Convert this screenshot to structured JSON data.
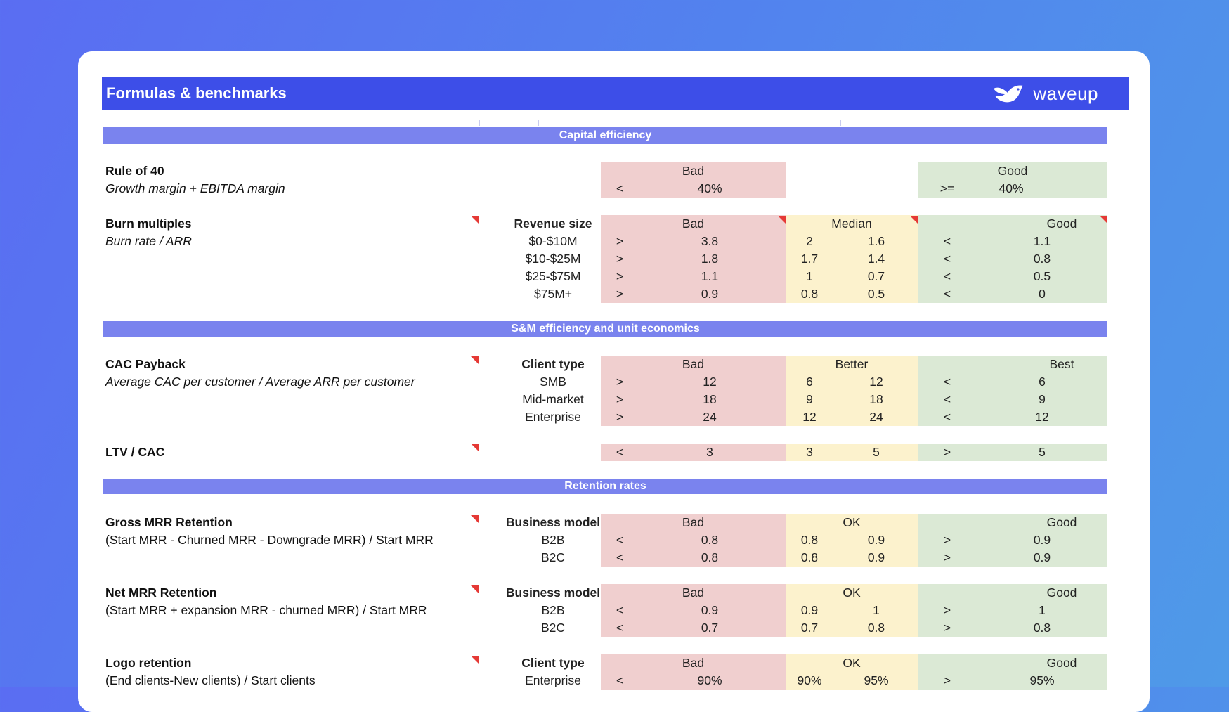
{
  "title": "Formulas & benchmarks",
  "brand": "waveup",
  "sections": {
    "capital": "Capital efficiency",
    "sm": "S&M efficiency and unit economics",
    "retention": "Retention rates"
  },
  "colors": {
    "accent": "#3d4ee8",
    "section": "#7a83ee",
    "bad": "#f0cfcf",
    "median": "#fcf2cd",
    "good": "#dbe9d5"
  },
  "rule40": {
    "name": "Rule of 40",
    "formula": "Growth margin + EBITDA margin",
    "bad_label": "Bad",
    "good_label": "Good",
    "bad_op": "<",
    "bad_val": "40%",
    "good_op": ">=",
    "good_val": "40%"
  },
  "burn": {
    "name": "Burn multiples",
    "formula": "Burn rate / ARR",
    "col": "Revenue size",
    "bad_label": "Bad",
    "mid_label": "Median",
    "good_label": "Good",
    "rows": [
      {
        "size": "$0-$10M",
        "bad_op": ">",
        "bad": "3.8",
        "m1": "2",
        "m2": "1.6",
        "good_op": "<",
        "good": "1.1"
      },
      {
        "size": "$10-$25M",
        "bad_op": ">",
        "bad": "1.8",
        "m1": "1.7",
        "m2": "1.4",
        "good_op": "<",
        "good": "0.8"
      },
      {
        "size": "$25-$75M",
        "bad_op": ">",
        "bad": "1.1",
        "m1": "1",
        "m2": "0.7",
        "good_op": "<",
        "good": "0.5"
      },
      {
        "size": "$75M+",
        "bad_op": ">",
        "bad": "0.9",
        "m1": "0.8",
        "m2": "0.5",
        "good_op": "<",
        "good": "0"
      }
    ]
  },
  "cac": {
    "name": "CAC Payback",
    "formula": "Average CAC per customer / Average ARR per customer",
    "col": "Client type",
    "bad_label": "Bad",
    "mid_label": "Better",
    "good_label": "Best",
    "rows": [
      {
        "type": "SMB",
        "bad_op": ">",
        "bad": "12",
        "m1": "6",
        "m2": "12",
        "good_op": "<",
        "good": "6"
      },
      {
        "type": "Mid-market",
        "bad_op": ">",
        "bad": "18",
        "m1": "9",
        "m2": "18",
        "good_op": "<",
        "good": "9"
      },
      {
        "type": "Enterprise",
        "bad_op": ">",
        "bad": "24",
        "m1": "12",
        "m2": "24",
        "good_op": "<",
        "good": "12"
      }
    ]
  },
  "ltv": {
    "name": "LTV / CAC",
    "bad_op": "<",
    "bad": "3",
    "m1": "3",
    "m2": "5",
    "good_op": ">",
    "good": "5"
  },
  "gross": {
    "name": "Gross MRR Retention",
    "formula": "(Start MRR - Churned MRR - Downgrade MRR) / Start MRR",
    "col": "Business model",
    "bad_label": "Bad",
    "mid_label": "OK",
    "good_label": "Good",
    "rows": [
      {
        "type": "B2B",
        "bad_op": "<",
        "bad": "0.8",
        "m1": "0.8",
        "m2": "0.9",
        "good_op": ">",
        "good": "0.9"
      },
      {
        "type": "B2C",
        "bad_op": "<",
        "bad": "0.8",
        "m1": "0.8",
        "m2": "0.9",
        "good_op": ">",
        "good": "0.9"
      }
    ]
  },
  "net": {
    "name": "Net MRR Retention",
    "formula": "(Start MRR + expansion MRR - churned MRR) / Start MRR",
    "col": "Business model",
    "bad_label": "Bad",
    "mid_label": "OK",
    "good_label": "Good",
    "rows": [
      {
        "type": "B2B",
        "bad_op": "<",
        "bad": "0.9",
        "m1": "0.9",
        "m2": "1",
        "good_op": ">",
        "good": "1"
      },
      {
        "type": "B2C",
        "bad_op": "<",
        "bad": "0.7",
        "m1": "0.7",
        "m2": "0.8",
        "good_op": ">",
        "good": "0.8"
      }
    ]
  },
  "logo": {
    "name": "Logo retention",
    "formula": "(End clients-New clients) / Start clients",
    "col": "Client type",
    "bad_label": "Bad",
    "mid_label": "OK",
    "good_label": "Good",
    "rows": [
      {
        "type": "Enterprise",
        "bad_op": "<",
        "bad": "90%",
        "m1": "90%",
        "m2": "95%",
        "good_op": ">",
        "good": "95%"
      }
    ]
  }
}
